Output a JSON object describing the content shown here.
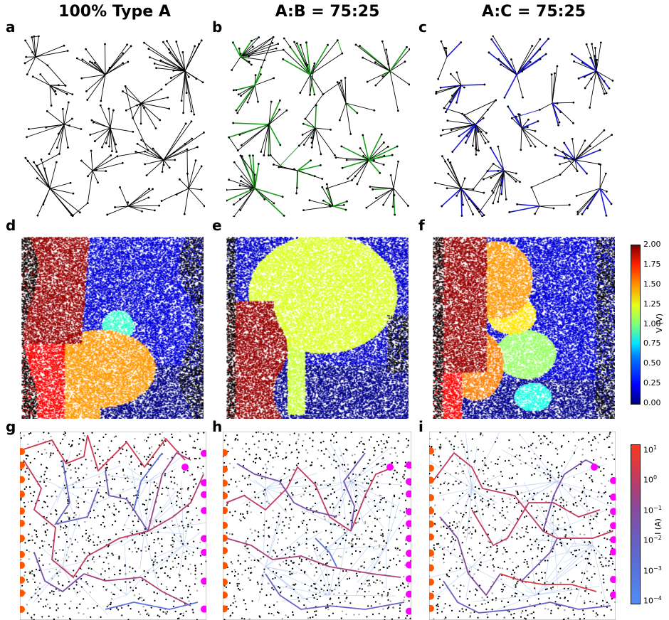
{
  "columns": [
    {
      "title": "100% Type A"
    },
    {
      "title": "A:B = 75:25"
    },
    {
      "title": "A:C = 75:25"
    }
  ],
  "panel_labels": [
    "a",
    "b",
    "c",
    "d",
    "e",
    "f",
    "g",
    "h",
    "i"
  ],
  "colorbar_voltage": {
    "label": "V (V)",
    "ticks": [
      "2.00",
      "1.75",
      "1.50",
      "1.25",
      "1.00",
      "0.75",
      "0.50",
      "0.25",
      "0.00"
    ]
  },
  "colorbar_current": {
    "label": "I (A)",
    "ticks": [
      "10^1",
      "10^0",
      "10^-1",
      "10^-2",
      "10^-3",
      "10^-4"
    ]
  },
  "colors": {
    "type_b": "#1a9a1a",
    "type_c": "#1a1ad6",
    "source": "#ff5500",
    "drain": "#ff00ff"
  }
}
